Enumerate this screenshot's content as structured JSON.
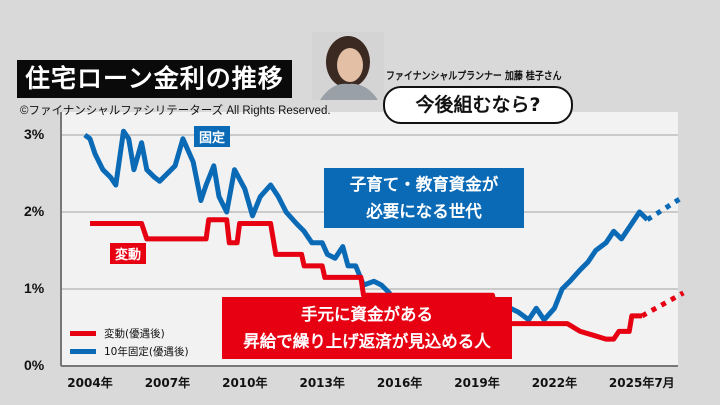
{
  "header": {
    "title": "住宅ローン金利の推移",
    "copyright": "©ファイナンシャルファシリテーターズ All Rights Reserved.",
    "speaker": "ファイナンシャルプランナー 加藤 桂子さん",
    "question": "今後組むなら?"
  },
  "annotations": {
    "fixed_label": "固定",
    "variable_label": "変動",
    "blue_callout_line1": "子育て・教育資金が",
    "blue_callout_line2": "必要になる世代",
    "red_callout_line1": "手元に資金がある",
    "red_callout_line2": "昇給で繰り上げ返済が見込める人"
  },
  "legend": [
    {
      "name": "変動(優遇後)",
      "color": "#e60012"
    },
    {
      "name": "10年固定(優遇後)",
      "color": "#0a6ab6"
    }
  ],
  "colors": {
    "variable": "#e60012",
    "fixed": "#0a6ab6",
    "plot_bg": "#f2f2f2",
    "grid": "#bdbdbd"
  },
  "chart_data": {
    "type": "line",
    "title": "住宅ローン金利の推移",
    "xlabel": "",
    "ylabel": "",
    "ylim": [
      0,
      3.2
    ],
    "y_ticks": [
      "0%",
      "1%",
      "2%",
      "3%"
    ],
    "x_ticks": [
      "2004年",
      "2007年",
      "2010年",
      "2013年",
      "2016年",
      "2019年",
      "2022年",
      "2025年7月"
    ],
    "grid": true,
    "legend_position": "bottom-left",
    "series": [
      {
        "name": "10年固定(優遇後)",
        "color": "#0a6ab6",
        "x": [
          2003.8,
          2004.0,
          2004.2,
          2004.5,
          2004.8,
          2005.0,
          2005.3,
          2005.5,
          2005.7,
          2006.0,
          2006.2,
          2006.5,
          2006.7,
          2007.0,
          2007.3,
          2007.6,
          2008.0,
          2008.3,
          2008.5,
          2008.8,
          2009.0,
          2009.3,
          2009.6,
          2010.0,
          2010.3,
          2010.6,
          2011.0,
          2011.3,
          2011.6,
          2012.0,
          2012.3,
          2012.6,
          2013.0,
          2013.2,
          2013.5,
          2013.8,
          2014.0,
          2014.3,
          2014.6,
          2015.0,
          2015.3,
          2015.6,
          2016.0,
          2016.3,
          2016.6,
          2017.0,
          2017.3,
          2017.6,
          2018.0,
          2018.3,
          2018.6,
          2019.0,
          2019.3,
          2019.6,
          2020.0,
          2020.3,
          2020.6,
          2021.0,
          2021.3,
          2021.6,
          2022.0,
          2022.3,
          2022.6,
          2023.0,
          2023.3,
          2023.6,
          2024.0,
          2024.3,
          2024.6,
          2025.0,
          2025.3,
          2025.6
        ],
        "values": [
          3.0,
          2.95,
          2.75,
          2.55,
          2.45,
          2.35,
          3.05,
          2.95,
          2.55,
          2.9,
          2.55,
          2.45,
          2.4,
          2.5,
          2.6,
          2.95,
          2.65,
          2.15,
          2.35,
          2.6,
          2.2,
          2.0,
          2.55,
          2.3,
          1.95,
          2.2,
          2.35,
          2.2,
          2.0,
          1.85,
          1.75,
          1.6,
          1.6,
          1.45,
          1.4,
          1.55,
          1.3,
          1.3,
          1.05,
          1.1,
          1.05,
          0.95,
          0.6,
          0.55,
          0.8,
          0.85,
          0.8,
          0.55,
          0.5,
          0.75,
          0.55,
          0.5,
          0.75,
          0.7,
          0.65,
          0.75,
          0.7,
          0.6,
          0.75,
          0.6,
          0.75,
          1.0,
          1.1,
          1.25,
          1.35,
          1.5,
          1.6,
          1.75,
          1.65,
          1.85,
          2.0,
          1.9
        ],
        "projection": {
          "x": [
            2025.6,
            2027.0
          ],
          "values": [
            1.9,
            2.2
          ],
          "style": "dotted"
        }
      },
      {
        "name": "変動(優遇後)",
        "color": "#e60012",
        "x": [
          2004.0,
          2006.0,
          2006.2,
          2008.5,
          2008.6,
          2009.3,
          2009.4,
          2009.7,
          2009.8,
          2011.0,
          2011.2,
          2012.2,
          2012.3,
          2013.0,
          2013.1,
          2014.5,
          2014.6,
          2019.6,
          2019.8,
          2020.0,
          2021.0,
          2022.5,
          2023.0,
          2023.5,
          2024.0,
          2024.3,
          2024.5,
          2024.9,
          2025.0,
          2025.4
        ],
        "values": [
          1.85,
          1.85,
          1.65,
          1.65,
          1.9,
          1.9,
          1.6,
          1.6,
          1.85,
          1.85,
          1.45,
          1.45,
          1.3,
          1.3,
          1.15,
          1.15,
          0.92,
          0.92,
          0.6,
          0.55,
          0.55,
          0.55,
          0.45,
          0.4,
          0.35,
          0.35,
          0.45,
          0.45,
          0.65,
          0.65
        ],
        "projection": {
          "x": [
            2025.4,
            2027.0
          ],
          "values": [
            0.65,
            0.95
          ],
          "style": "dotted"
        }
      }
    ]
  }
}
